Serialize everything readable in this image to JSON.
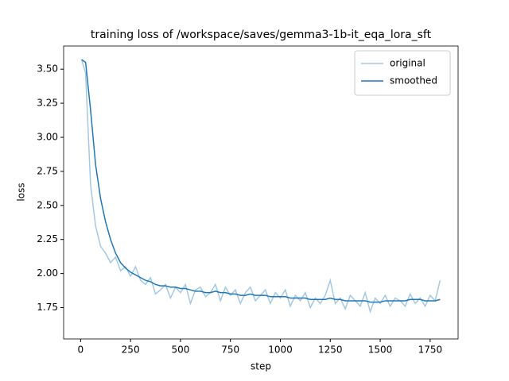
{
  "chart_data": {
    "type": "line",
    "title": "training loss of /workspace/saves/gemma3-1b-it_eqa_lora_sft",
    "xlabel": "step",
    "ylabel": "loss",
    "x": [
      5,
      25,
      50,
      75,
      100,
      125,
      150,
      175,
      200,
      225,
      250,
      275,
      300,
      325,
      350,
      375,
      400,
      425,
      450,
      475,
      500,
      525,
      550,
      575,
      600,
      625,
      650,
      675,
      700,
      725,
      750,
      775,
      800,
      825,
      850,
      875,
      900,
      925,
      950,
      975,
      1000,
      1025,
      1050,
      1075,
      1100,
      1125,
      1150,
      1175,
      1200,
      1225,
      1250,
      1275,
      1300,
      1325,
      1350,
      1375,
      1400,
      1425,
      1450,
      1475,
      1500,
      1525,
      1550,
      1575,
      1600,
      1625,
      1650,
      1675,
      1700,
      1725,
      1750,
      1775,
      1800
    ],
    "series": [
      {
        "name": "original",
        "color": "#a5c8e1",
        "values": [
          3.57,
          3.47,
          2.65,
          2.35,
          2.2,
          2.15,
          2.08,
          2.12,
          2.02,
          2.05,
          1.98,
          2.05,
          1.95,
          1.92,
          1.97,
          1.85,
          1.88,
          1.92,
          1.82,
          1.9,
          1.86,
          1.92,
          1.78,
          1.88,
          1.9,
          1.83,
          1.86,
          1.92,
          1.8,
          1.9,
          1.84,
          1.88,
          1.78,
          1.86,
          1.9,
          1.8,
          1.84,
          1.88,
          1.78,
          1.86,
          1.82,
          1.88,
          1.76,
          1.84,
          1.8,
          1.86,
          1.75,
          1.82,
          1.78,
          1.84,
          1.95,
          1.78,
          1.82,
          1.74,
          1.84,
          1.8,
          1.76,
          1.86,
          1.72,
          1.82,
          1.78,
          1.84,
          1.76,
          1.82,
          1.8,
          1.76,
          1.85,
          1.78,
          1.82,
          1.76,
          1.84,
          1.8,
          1.95
        ]
      },
      {
        "name": "smoothed",
        "color": "#1f77b4",
        "values": [
          3.57,
          3.55,
          3.2,
          2.8,
          2.55,
          2.38,
          2.25,
          2.15,
          2.08,
          2.04,
          2.01,
          1.99,
          1.97,
          1.95,
          1.94,
          1.92,
          1.91,
          1.91,
          1.9,
          1.9,
          1.89,
          1.89,
          1.88,
          1.87,
          1.87,
          1.86,
          1.86,
          1.87,
          1.86,
          1.86,
          1.85,
          1.85,
          1.84,
          1.84,
          1.85,
          1.84,
          1.84,
          1.84,
          1.83,
          1.83,
          1.83,
          1.83,
          1.82,
          1.82,
          1.82,
          1.82,
          1.81,
          1.81,
          1.81,
          1.81,
          1.82,
          1.81,
          1.81,
          1.8,
          1.8,
          1.8,
          1.8,
          1.8,
          1.79,
          1.79,
          1.79,
          1.8,
          1.8,
          1.8,
          1.8,
          1.8,
          1.81,
          1.81,
          1.81,
          1.8,
          1.8,
          1.8,
          1.81
        ]
      }
    ],
    "xlim": [
      -85,
      1890
    ],
    "xticks": [
      0,
      250,
      500,
      750,
      1000,
      1250,
      1500,
      1750
    ],
    "ylim": [
      1.52,
      3.67
    ],
    "yticks": [
      1.75,
      {
        "value": 2,
        "label": "2.00"
      },
      2.25,
      {
        "value": 2.5,
        "label": "2.50"
      },
      2.75,
      {
        "value": 3,
        "label": "3.00"
      },
      3.25,
      {
        "value": 3.5,
        "label": "3.50"
      }
    ],
    "legend": "upper right"
  }
}
